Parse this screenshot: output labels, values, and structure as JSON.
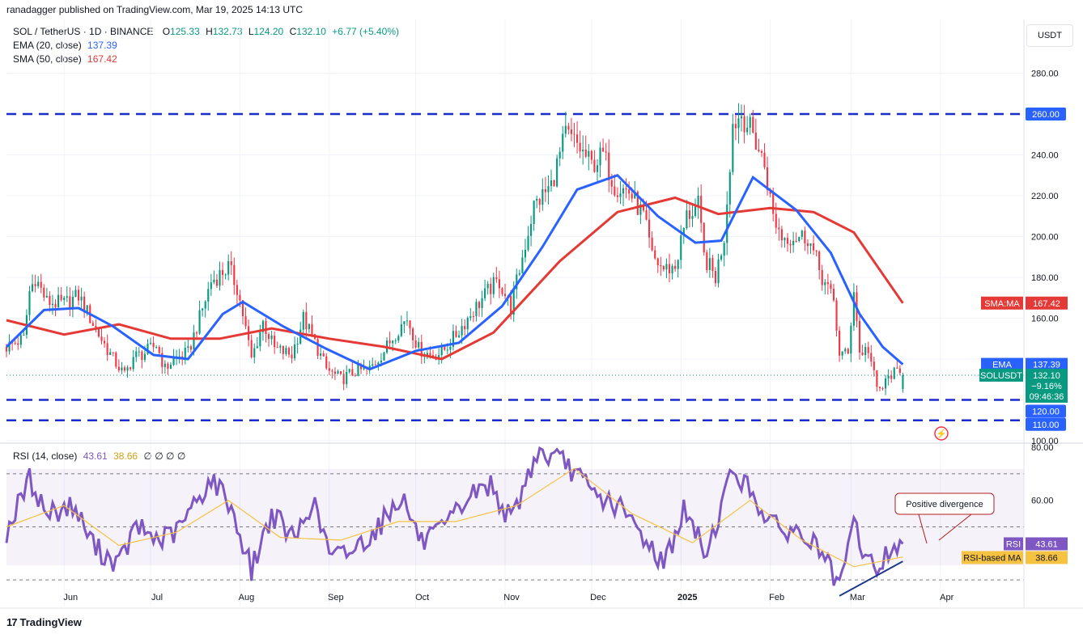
{
  "header": {
    "attribution": "ranadagger published on TradingView.com, Mar 19, 2025 14:13 UTC"
  },
  "legend": {
    "symbol": "SOL / TetherUS · 1D · BINANCE",
    "o_label": "O",
    "o": "125.33",
    "h_label": "H",
    "h": "132.73",
    "l_label": "L",
    "l": "124.20",
    "c_label": "C",
    "c": "132.10",
    "change": "+6.77 (+5.40%)",
    "ema_label": "EMA (20, close)",
    "ema_value": "137.39",
    "sma_label": "SMA (50, close)",
    "sma_value": "167.42",
    "rsi_label": "RSI (14, close)",
    "rsi_value": "43.61",
    "rsi_ma_value": "38.66",
    "rsi_extra": "∅ ∅ ∅ ∅"
  },
  "currency_button": "USDT",
  "footer": {
    "brand": "TradingView"
  },
  "colors": {
    "up": "#089981",
    "down": "#f23645",
    "ema": "#2962ff",
    "sma": "#e53935",
    "rsi": "#7e57c2",
    "rsi_ma": "#f5c242",
    "level": "#1a2cc9",
    "divergence": "#1e3a8a",
    "label_blue": "#2962ff"
  },
  "chart_data": [
    {
      "type": "candlestick",
      "title": "SOL / TetherUS · 1D · BINANCE",
      "ylabel": "USDT",
      "ylim": [
        100,
        300
      ],
      "yticks": [
        100,
        120,
        140,
        160,
        180,
        200,
        220,
        240,
        260,
        280
      ],
      "ytick_labels": [
        "100.00",
        "",
        "",
        "160.00",
        "180.00",
        "200.00",
        "220.00",
        "240.00",
        "",
        "280.00"
      ],
      "x_labels": [
        "Jun",
        "Jul",
        "Aug",
        "Sep",
        "Oct",
        "Nov",
        "Dec",
        "2025",
        "Feb",
        "Mar",
        "Apr"
      ],
      "x_range": [
        "2024-05-12",
        "2025-04-30"
      ],
      "last_close": 132.1,
      "price_path": [
        [
          "2024-05-12",
          146
        ],
        [
          "2024-05-18",
          150
        ],
        [
          "2024-05-20",
          173
        ],
        [
          "2024-05-22",
          180
        ],
        [
          "2024-05-26",
          168
        ],
        [
          "2024-06-01",
          167
        ],
        [
          "2024-06-06",
          171
        ],
        [
          "2024-06-09",
          163
        ],
        [
          "2024-06-13",
          152
        ],
        [
          "2024-06-18",
          140
        ],
        [
          "2024-06-22",
          132
        ],
        [
          "2024-06-25",
          141
        ],
        [
          "2024-06-29",
          143
        ],
        [
          "2024-07-03",
          147
        ],
        [
          "2024-07-06",
          135
        ],
        [
          "2024-07-09",
          140
        ],
        [
          "2024-07-14",
          143
        ],
        [
          "2024-07-18",
          160
        ],
        [
          "2024-07-22",
          178
        ],
        [
          "2024-07-28",
          185
        ],
        [
          "2024-07-31",
          175
        ],
        [
          "2024-08-02",
          162
        ],
        [
          "2024-08-05",
          140
        ],
        [
          "2024-08-09",
          158
        ],
        [
          "2024-08-13",
          145
        ],
        [
          "2024-08-19",
          142
        ],
        [
          "2024-08-23",
          160
        ],
        [
          "2024-08-27",
          148
        ],
        [
          "2024-08-31",
          135
        ],
        [
          "2024-09-05",
          130
        ],
        [
          "2024-09-10",
          134
        ],
        [
          "2024-09-15",
          135
        ],
        [
          "2024-09-20",
          144
        ],
        [
          "2024-09-25",
          155
        ],
        [
          "2024-09-28",
          160
        ],
        [
          "2024-10-02",
          145
        ],
        [
          "2024-10-06",
          142
        ],
        [
          "2024-10-10",
          143
        ],
        [
          "2024-10-15",
          152
        ],
        [
          "2024-10-20",
          162
        ],
        [
          "2024-10-27",
          175
        ],
        [
          "2024-10-30",
          178
        ],
        [
          "2024-11-03",
          165
        ],
        [
          "2024-11-07",
          190
        ],
        [
          "2024-11-11",
          215
        ],
        [
          "2024-11-17",
          225
        ],
        [
          "2024-11-22",
          250
        ],
        [
          "2024-11-26",
          245
        ],
        [
          "2024-12-01",
          235
        ],
        [
          "2024-12-05",
          240
        ],
        [
          "2024-12-09",
          225
        ],
        [
          "2024-12-14",
          222
        ],
        [
          "2024-12-19",
          210
        ],
        [
          "2024-12-22",
          190
        ],
        [
          "2024-12-26",
          184
        ],
        [
          "2024-12-30",
          185
        ],
        [
          "2025-01-03",
          210
        ],
        [
          "2025-01-07",
          215
        ],
        [
          "2025-01-09",
          190
        ],
        [
          "2025-01-13",
          180
        ],
        [
          "2025-01-16",
          200
        ],
        [
          "2025-01-19",
          255
        ],
        [
          "2025-01-22",
          260
        ],
        [
          "2025-01-26",
          250
        ],
        [
          "2025-01-30",
          235
        ],
        [
          "2025-02-02",
          210
        ],
        [
          "2025-02-05",
          200
        ],
        [
          "2025-02-10",
          200
        ],
        [
          "2025-02-14",
          200
        ],
        [
          "2025-02-19",
          180
        ],
        [
          "2025-02-23",
          168
        ],
        [
          "2025-02-25",
          143
        ],
        [
          "2025-02-28",
          142
        ],
        [
          "2025-03-02",
          175
        ],
        [
          "2025-03-04",
          143
        ],
        [
          "2025-03-07",
          145
        ],
        [
          "2025-03-10",
          125
        ],
        [
          "2025-03-12",
          126
        ],
        [
          "2025-03-15",
          133
        ],
        [
          "2025-03-19",
          132.1
        ]
      ],
      "series": [
        {
          "name": "EMA (20, close)",
          "last": 137.39,
          "points": [
            [
              "2024-05-12",
              146
            ],
            [
              "2024-05-25",
              164
            ],
            [
              "2024-06-06",
              165
            ],
            [
              "2024-06-18",
              156
            ],
            [
              "2024-07-02",
              142
            ],
            [
              "2024-07-14",
              140
            ],
            [
              "2024-07-26",
              162
            ],
            [
              "2024-08-02",
              168
            ],
            [
              "2024-08-16",
              156
            ],
            [
              "2024-08-31",
              145
            ],
            [
              "2024-09-15",
              135
            ],
            [
              "2024-10-01",
              144
            ],
            [
              "2024-10-16",
              148
            ],
            [
              "2024-10-31",
              166
            ],
            [
              "2024-11-14",
              195
            ],
            [
              "2024-11-26",
              223
            ],
            [
              "2024-12-10",
              230
            ],
            [
              "2024-12-24",
              210
            ],
            [
              "2025-01-06",
              197
            ],
            [
              "2025-01-15",
              198
            ],
            [
              "2025-01-26",
              229
            ],
            [
              "2025-02-10",
              213
            ],
            [
              "2025-02-22",
              192
            ],
            [
              "2025-03-04",
              162
            ],
            [
              "2025-03-12",
              146
            ],
            [
              "2025-03-19",
              137.39
            ]
          ]
        },
        {
          "name": "SMA (50, close)",
          "last": 167.42,
          "points": [
            [
              "2024-05-12",
              159
            ],
            [
              "2024-06-01",
              152
            ],
            [
              "2024-06-20",
              157
            ],
            [
              "2024-07-08",
              150
            ],
            [
              "2024-07-25",
              150
            ],
            [
              "2024-08-12",
              155
            ],
            [
              "2024-09-01",
              150
            ],
            [
              "2024-09-20",
              146
            ],
            [
              "2024-10-10",
              140
            ],
            [
              "2024-10-28",
              153
            ],
            [
              "2024-11-20",
              188
            ],
            [
              "2024-12-10",
              212
            ],
            [
              "2024-12-30",
              219
            ],
            [
              "2025-01-14",
              211
            ],
            [
              "2025-02-01",
              214
            ],
            [
              "2025-02-16",
              212
            ],
            [
              "2025-03-02",
              202
            ],
            [
              "2025-03-19",
              167.42
            ]
          ]
        }
      ],
      "horizontal_levels": [
        {
          "value": 260,
          "label": "260.00"
        },
        {
          "value": 120,
          "label": "120.00"
        },
        {
          "value": 110,
          "label": "110.00"
        }
      ],
      "price_labels": [
        {
          "name": "SMA:MA",
          "value": "167.42"
        },
        {
          "name": "EMA",
          "value": "137.39"
        },
        {
          "name": "SOLUSDT",
          "value": "132.10",
          "change": "−9.16%",
          "countdown": "09:46:36"
        }
      ]
    },
    {
      "type": "line",
      "title": "RSI (14, close)",
      "ylim": [
        20,
        80
      ],
      "yticks": [
        80,
        60
      ],
      "ytick_labels": [
        "80.00",
        "60.00"
      ],
      "bands": [
        70,
        50,
        30
      ],
      "series": [
        {
          "name": "RSI",
          "last": 43.61,
          "points": [
            [
              "2024-05-12",
              48
            ],
            [
              "2024-05-20",
              68
            ],
            [
              "2024-05-26",
              55
            ],
            [
              "2024-06-04",
              58
            ],
            [
              "2024-06-12",
              42
            ],
            [
              "2024-06-20",
              36
            ],
            [
              "2024-06-26",
              50
            ],
            [
              "2024-07-04",
              45
            ],
            [
              "2024-07-10",
              48
            ],
            [
              "2024-07-22",
              68
            ],
            [
              "2024-07-28",
              60
            ],
            [
              "2024-08-05",
              34
            ],
            [
              "2024-08-12",
              55
            ],
            [
              "2024-08-20",
              45
            ],
            [
              "2024-08-26",
              60
            ],
            [
              "2024-09-02",
              38
            ],
            [
              "2024-09-10",
              42
            ],
            [
              "2024-09-18",
              50
            ],
            [
              "2024-09-26",
              62
            ],
            [
              "2024-10-03",
              44
            ],
            [
              "2024-10-10",
              48
            ],
            [
              "2024-10-20",
              62
            ],
            [
              "2024-10-27",
              66
            ],
            [
              "2024-11-03",
              52
            ],
            [
              "2024-11-12",
              78
            ],
            [
              "2024-11-22",
              74
            ],
            [
              "2024-12-02",
              62
            ],
            [
              "2024-12-10",
              58
            ],
            [
              "2024-12-20",
              45
            ],
            [
              "2024-12-26",
              36
            ],
            [
              "2025-01-02",
              56
            ],
            [
              "2025-01-10",
              40
            ],
            [
              "2025-01-19",
              72
            ],
            [
              "2025-01-26",
              62
            ],
            [
              "2025-02-02",
              50
            ],
            [
              "2025-02-10",
              48
            ],
            [
              "2025-02-18",
              42
            ],
            [
              "2025-02-25",
              26
            ],
            [
              "2025-03-02",
              52
            ],
            [
              "2025-03-06",
              38
            ],
            [
              "2025-03-10",
              34
            ],
            [
              "2025-03-15",
              42
            ],
            [
              "2025-03-19",
              43.61
            ]
          ]
        },
        {
          "name": "RSI-based MA",
          "last": 38.66,
          "points": [
            [
              "2024-05-12",
              50
            ],
            [
              "2024-06-01",
              58
            ],
            [
              "2024-06-20",
              43
            ],
            [
              "2024-07-10",
              48
            ],
            [
              "2024-07-28",
              60
            ],
            [
              "2024-08-15",
              46
            ],
            [
              "2024-09-05",
              45
            ],
            [
              "2024-09-25",
              52
            ],
            [
              "2024-10-15",
              52
            ],
            [
              "2024-11-05",
              58
            ],
            [
              "2024-11-25",
              72
            ],
            [
              "2024-12-15",
              55
            ],
            [
              "2025-01-05",
              44
            ],
            [
              "2025-01-25",
              60
            ],
            [
              "2025-02-12",
              45
            ],
            [
              "2025-03-02",
              35
            ],
            [
              "2025-03-19",
              38.66
            ]
          ]
        }
      ],
      "annotations": [
        {
          "text": "Positive divergence"
        }
      ],
      "price_labels": [
        {
          "name": "RSI",
          "value": "43.61"
        },
        {
          "name": "RSI-based MA",
          "value": "38.66"
        }
      ]
    }
  ]
}
